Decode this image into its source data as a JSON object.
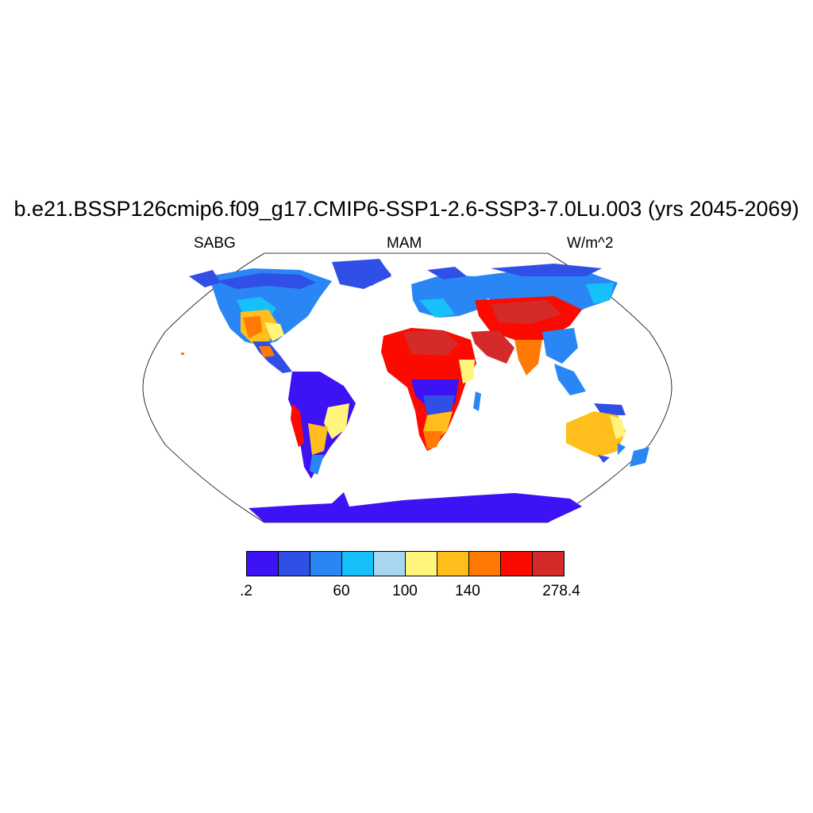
{
  "title": "b.e21.BSSP126cmip6.f09_g17.CMIP6-SSP1-2.6-SSP3-7.0Lu.003 (yrs 2045-2069)",
  "subtitle_left": "SABG",
  "subtitle_center": "MAM",
  "subtitle_right": "W/m^2",
  "colorbar": {
    "colors": [
      "#3d12f5",
      "#2f4fe6",
      "#2a86f5",
      "#18c0fb",
      "#a6d6f0",
      "#fff57d",
      "#ffbe1c",
      "#ff7a05",
      "#fb0a00",
      "#d42a2a"
    ],
    "labels": [
      ".2",
      "60",
      "100",
      "140",
      "278.4"
    ]
  }
}
